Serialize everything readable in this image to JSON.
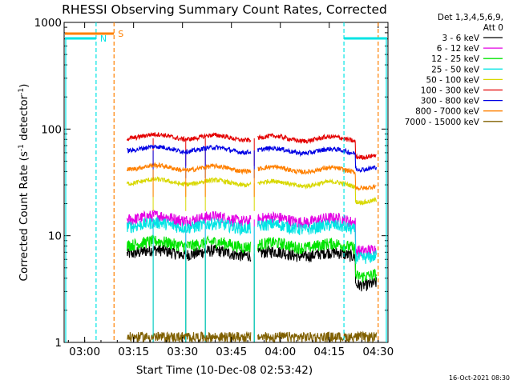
{
  "chart_data": {
    "type": "line",
    "title": "RHESSI Observing Summary Count Rates, Corrected",
    "xlabel": "Start Time (10-Dec-08 02:53:42)",
    "ylabel": "Corrected Count Rate (s⁻¹ detector⁻¹)",
    "ylabel_parts": [
      "Corrected Count Rate (s",
      "-1",
      " detector",
      "-1",
      ")"
    ],
    "yscale": "log",
    "ylim": [
      1,
      1000
    ],
    "xlim": [
      "02:53:42",
      "04:33:00"
    ],
    "x_ticks": [
      "03:00",
      "03:15",
      "03:30",
      "03:45",
      "04:00",
      "04:15",
      "04:30"
    ],
    "y_ticks": [
      "1",
      "10",
      "100",
      "1000"
    ],
    "legend": {
      "position": "top-right",
      "header": [
        "Det 1,3,4,5,6,9,",
        "Att 0"
      ]
    },
    "series": [
      {
        "name": "3 - 6 keV",
        "color": "#000000",
        "level": 6.8
      },
      {
        "name": "6 - 12 keV",
        "color": "#e400e4",
        "level": 14.2
      },
      {
        "name": "12 - 25 keV",
        "color": "#00e400",
        "level": 8.2
      },
      {
        "name": "25 - 50 keV",
        "color": "#00e4e4",
        "level": 12.2
      },
      {
        "name": "50 - 100 keV",
        "color": "#d8d800",
        "level": 31
      },
      {
        "name": "100 - 300 keV",
        "color": "#e40000",
        "level": 82
      },
      {
        "name": "300 - 800 keV",
        "color": "#0000e4",
        "level": 63
      },
      {
        "name": "800 - 7000 keV",
        "color": "#ff8000",
        "level": 42
      },
      {
        "name": "7000 - 15000 keV",
        "color": "#806000",
        "level": 1.2
      }
    ],
    "data_window": [
      "03:13:00",
      "04:29:30"
    ],
    "flag_lines": {
      "saa_color": "#ff8000",
      "night_color": "#00e4e4",
      "saa_label": "S",
      "night_label": "N",
      "saa_at": [
        "03:09:00",
        "04:30:00"
      ],
      "night_at": [
        "03:03:30",
        "04:19:30"
      ]
    },
    "footer_timestamp": "16-Oct-2021 08:30"
  }
}
